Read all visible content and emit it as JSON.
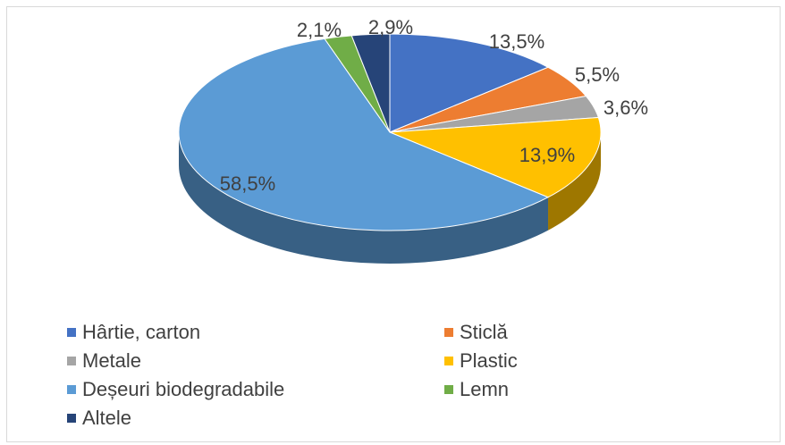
{
  "chart_data": {
    "type": "pie",
    "categories": [
      "Hârtie, carton",
      "Sticlă",
      "Metale",
      "Plastic",
      "Deșeuri biodegradabile",
      "Lemn",
      "Altele"
    ],
    "values": [
      13.5,
      5.5,
      3.6,
      13.9,
      58.5,
      2.1,
      2.9
    ],
    "value_labels": [
      "13,5%",
      "5,5%",
      "3,6%",
      "13,9%",
      "58,5%",
      "2,1%",
      "2,9%"
    ],
    "colors": [
      "#4472c4",
      "#ed7d31",
      "#a5a5a5",
      "#ffc000",
      "#5b9bd5",
      "#70ad47",
      "#264478"
    ],
    "legend": "bottom"
  }
}
